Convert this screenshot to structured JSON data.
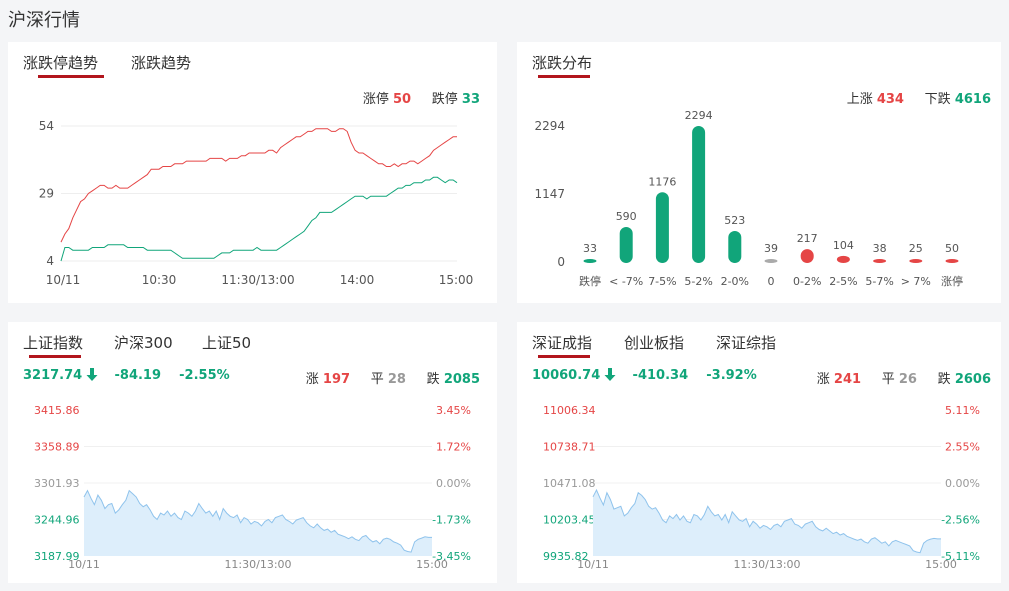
{
  "page": {
    "title": "沪深行情"
  },
  "limit_panel": {
    "tabs": [
      "涨跌停趋势",
      "涨跌趋势"
    ],
    "up_label": "涨停",
    "up_value": "50",
    "down_label": "跌停",
    "down_value": "33",
    "colors": {
      "up": "#e54545",
      "down": "#11a57a"
    }
  },
  "dist_panel": {
    "tab": "涨跌分布",
    "up_label": "上涨",
    "up_value": "434",
    "down_label": "下跌",
    "down_value": "4616"
  },
  "index_panel_sh": {
    "tabs": [
      "上证指数",
      "沪深300",
      "上证50"
    ],
    "price": "3217.74",
    "change": "-84.19",
    "change_pct": "-2.55%",
    "rise_label": "涨",
    "rise_value": "197",
    "flat_label": "平",
    "flat_value": "28",
    "fall_label": "跌",
    "fall_value": "2085",
    "arrow_icon": "arrow-down-icon"
  },
  "index_panel_sz": {
    "tabs": [
      "深证成指",
      "创业板指",
      "深证综指"
    ],
    "price": "10060.74",
    "change": "-410.34",
    "change_pct": "-3.92%",
    "rise_label": "涨",
    "rise_value": "241",
    "flat_label": "平",
    "flat_value": "26",
    "fall_label": "跌",
    "fall_value": "2606",
    "arrow_icon": "arrow-down-icon"
  },
  "chart_data": [
    {
      "type": "line",
      "x_ticks": [
        "10/11",
        "10:30",
        "11:30/13:00",
        "14:00",
        "15:00"
      ],
      "y_ticks": [
        4,
        29,
        54
      ],
      "ylim": [
        4,
        54
      ],
      "series": [
        {
          "name": "涨停",
          "color": "#e54545",
          "values": [
            11,
            14,
            16,
            20,
            23,
            26,
            27,
            29,
            30,
            31,
            32,
            32,
            31,
            31,
            32,
            31,
            31,
            31,
            32,
            33,
            34,
            35,
            36,
            38,
            38,
            38,
            39,
            39,
            39,
            40,
            40,
            40,
            41,
            41,
            41,
            41,
            41,
            41,
            42,
            42,
            42,
            42,
            41,
            42,
            42,
            42,
            43,
            43,
            44,
            44,
            44,
            44,
            44,
            45,
            45,
            44,
            46,
            47,
            48,
            49,
            50,
            50,
            51,
            52,
            52,
            53,
            53,
            53,
            53,
            52,
            52,
            53,
            53,
            52,
            48,
            45,
            44,
            44,
            43,
            42,
            41,
            40,
            40,
            39,
            39,
            40,
            39,
            40,
            40,
            41,
            41,
            40,
            41,
            42,
            43,
            45,
            46,
            47,
            48,
            49,
            50,
            50
          ]
        },
        {
          "name": "跌停",
          "color": "#11a57a",
          "values": [
            4,
            9,
            9,
            8,
            8,
            8,
            8,
            8,
            9,
            9,
            9,
            9,
            10,
            10,
            10,
            10,
            10,
            9,
            9,
            9,
            9,
            9,
            8,
            8,
            8,
            8,
            8,
            8,
            8,
            7,
            6,
            5,
            5,
            5,
            5,
            5,
            5,
            5,
            5,
            5,
            6,
            7,
            7,
            7,
            8,
            8,
            8,
            8,
            8,
            8,
            9,
            8,
            8,
            8,
            8,
            8,
            9,
            10,
            11,
            12,
            13,
            14,
            15,
            17,
            19,
            20,
            22,
            22,
            22,
            22,
            23,
            24,
            25,
            26,
            27,
            28,
            28,
            28,
            27,
            28,
            28,
            28,
            28,
            28,
            29,
            30,
            31,
            31,
            32,
            32,
            33,
            33,
            33,
            34,
            34,
            35,
            35,
            34,
            33,
            34,
            34,
            33
          ]
        }
      ]
    },
    {
      "type": "bar",
      "categories": [
        "跌停",
        "< -7%",
        "7-5%",
        "5-2%",
        "2-0%",
        "0",
        "0-2%",
        "2-5%",
        "5-7%",
        "> 7%",
        "涨停"
      ],
      "values": [
        33,
        590,
        1176,
        2294,
        523,
        39,
        217,
        104,
        38,
        25,
        50
      ],
      "colors": [
        "#11a57a",
        "#11a57a",
        "#11a57a",
        "#11a57a",
        "#11a57a",
        "#aaaaaa",
        "#e54545",
        "#e54545",
        "#e54545",
        "#e54545",
        "#e54545"
      ],
      "y_ticks": [
        "0",
        "1147",
        "2294"
      ],
      "ylim": [
        0,
        2294
      ]
    },
    {
      "type": "area",
      "y_ticks_left": [
        "3415.86",
        "3358.89",
        "3301.93",
        "3244.96",
        "3187.99"
      ],
      "y_ticks_right": [
        "3.45%",
        "1.72%",
        "0.00%",
        "-1.73%",
        "-3.45%"
      ],
      "x_ticks": [
        "10/11",
        "11:30/13:00",
        "15:00"
      ],
      "ylim": [
        3187.99,
        3415.86
      ],
      "tick_colors": [
        "#e54545",
        "#e54545",
        "#999999",
        "#11a57a",
        "#11a57a"
      ],
      "values": [
        3280,
        3290,
        3278,
        3268,
        3283,
        3275,
        3262,
        3268,
        3270,
        3255,
        3260,
        3268,
        3275,
        3290,
        3285,
        3280,
        3270,
        3265,
        3268,
        3260,
        3250,
        3245,
        3255,
        3252,
        3258,
        3250,
        3255,
        3248,
        3245,
        3258,
        3255,
        3250,
        3258,
        3270,
        3262,
        3255,
        3258,
        3250,
        3258,
        3245,
        3262,
        3255,
        3250,
        3248,
        3252,
        3240,
        3248,
        3245,
        3238,
        3242,
        3240,
        3235,
        3242,
        3245,
        3240,
        3248,
        3250,
        3252,
        3245,
        3242,
        3238,
        3244,
        3246,
        3248,
        3240,
        3235,
        3232,
        3238,
        3232,
        3228,
        3230,
        3225,
        3228,
        3222,
        3220,
        3218,
        3215,
        3218,
        3214,
        3212,
        3218,
        3220,
        3214,
        3210,
        3212,
        3207,
        3214,
        3216,
        3214,
        3210,
        3208,
        3205,
        3197,
        3195,
        3194,
        3210,
        3214,
        3216,
        3218,
        3217,
        3217
      ]
    },
    {
      "type": "area",
      "y_ticks_left": [
        "11006.34",
        "10738.71",
        "10471.08",
        "10203.45",
        "9935.82"
      ],
      "y_ticks_right": [
        "5.11%",
        "2.55%",
        "0.00%",
        "-2.56%",
        "-5.11%"
      ],
      "x_ticks": [
        "10/11",
        "11:30/13:00",
        "15:00"
      ],
      "ylim": [
        9935.82,
        11006.34
      ],
      "tick_colors": [
        "#e54545",
        "#e54545",
        "#999999",
        "#11a57a",
        "#11a57a"
      ],
      "values": [
        10370,
        10420,
        10360,
        10310,
        10400,
        10350,
        10280,
        10290,
        10300,
        10230,
        10250,
        10290,
        10320,
        10400,
        10380,
        10350,
        10300,
        10280,
        10290,
        10250,
        10200,
        10180,
        10230,
        10210,
        10240,
        10200,
        10230,
        10190,
        10180,
        10240,
        10230,
        10200,
        10240,
        10300,
        10260,
        10230,
        10240,
        10200,
        10240,
        10180,
        10260,
        10230,
        10200,
        10190,
        10210,
        10150,
        10190,
        10170,
        10140,
        10160,
        10150,
        10130,
        10160,
        10170,
        10150,
        10190,
        10200,
        10210,
        10170,
        10160,
        10140,
        10170,
        10180,
        10190,
        10150,
        10130,
        10120,
        10140,
        10120,
        10100,
        10110,
        10090,
        10100,
        10080,
        10070,
        10060,
        10050,
        10060,
        10040,
        10030,
        10060,
        10070,
        10050,
        10030,
        10040,
        10010,
        10040,
        10050,
        10040,
        10030,
        10020,
        10010,
        9975,
        9965,
        9960,
        10030,
        10050,
        10060,
        10065,
        10061,
        10061
      ]
    }
  ]
}
